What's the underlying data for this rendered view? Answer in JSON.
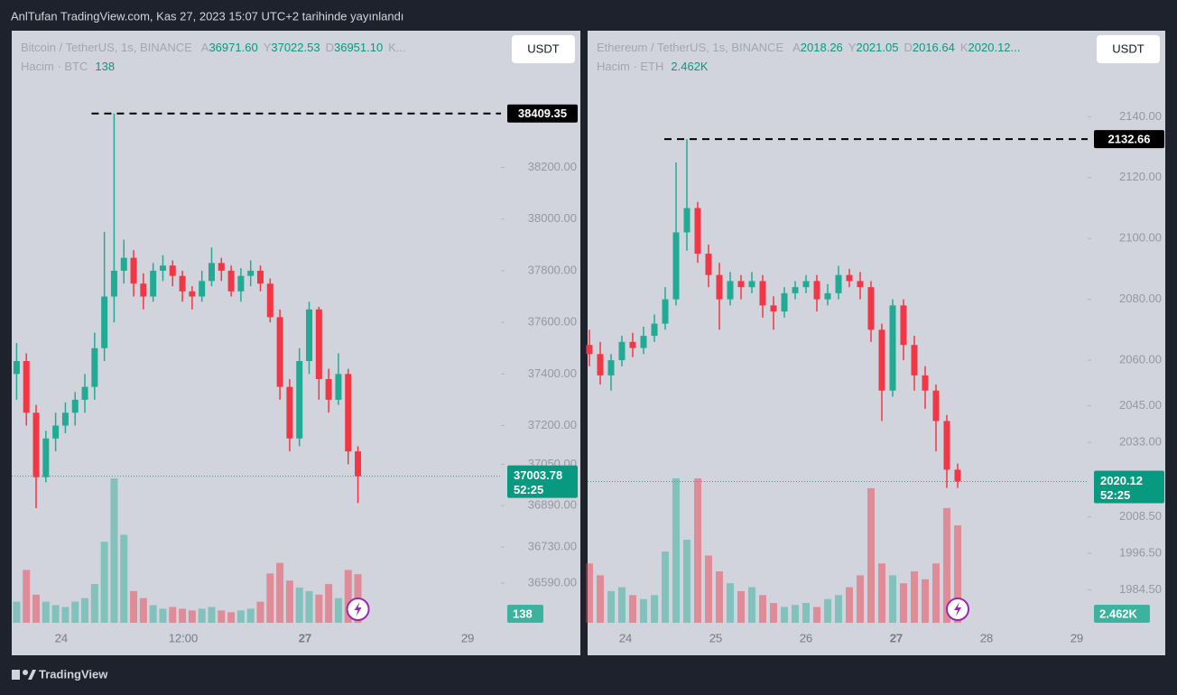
{
  "header": {
    "title": "AnlTufan TradingView.com, Kas 27, 2023 15:07 UTC+2 tarihinde yayınlandı",
    "footer": "TradingView",
    "currency_button": "USDT"
  },
  "chart_data": [
    {
      "type": "candlestick",
      "symbol": "Bitcoin / TetherUS, 1s, BINANCE",
      "ohlc": [
        {
          "key": "A",
          "value": {
            "value": 36971.6,
            "label": "36971.60"
          }
        },
        {
          "key": "Y",
          "value": {
            "value": 37022.53,
            "label": "37022.53"
          }
        },
        {
          "key": "D",
          "value": {
            "value": 36951.1,
            "label": "36951.10"
          }
        }
      ],
      "ohlc_more": "K...",
      "volume_title": "Hacim · BTC",
      "volume_label": 138,
      "max_label": {
        "value": 38409.35,
        "label": "38409.35"
      },
      "last_label": {
        "value": 37003.78,
        "label": "37003.78"
      },
      "countdown": "52:25",
      "xlim": [
        23.39,
        29.41
      ],
      "xticks": [
        24,
        {
          "value": 25.5,
          "label": "12:00"
        },
        27,
        29
      ],
      "ylim": [
        36310,
        38730
      ],
      "yticks": [
        {
          "value": 36590,
          "label": "36590.00"
        },
        {
          "value": 36730,
          "label": "36730.00"
        },
        {
          "value": 36890,
          "label": "36890.00"
        },
        {
          "value": 37050,
          "label": "37050.00"
        },
        {
          "value": 37200,
          "label": "37200.00"
        },
        {
          "value": 37400,
          "label": "37400.00"
        },
        {
          "value": 37600,
          "label": "37600.00"
        },
        {
          "value": 37800,
          "label": "37800.00"
        },
        {
          "value": 38000,
          "label": "38000.00"
        },
        {
          "value": 38200,
          "label": "38200.00"
        }
      ],
      "up_color": "#22ab94",
      "down_color": "#f23645",
      "x": [
        23.45,
        23.57,
        23.69,
        23.81,
        23.93,
        24.05,
        24.17,
        24.29,
        24.41,
        24.53,
        24.65,
        24.77,
        24.89,
        25.01,
        25.13,
        25.25,
        25.37,
        25.49,
        25.61,
        25.73,
        25.85,
        25.97,
        26.09,
        26.21,
        26.33,
        26.45,
        26.57,
        26.69,
        26.81,
        26.93,
        27.05,
        27.17,
        27.29,
        27.41,
        27.53,
        27.65
      ],
      "open": [
        37400,
        37450,
        37250,
        37000,
        37150,
        37200,
        37250,
        37300,
        37350,
        37500,
        37700,
        37800,
        37850,
        37750,
        37700,
        37800,
        37820,
        37780,
        37720,
        37700,
        37760,
        37830,
        37800,
        37720,
        37780,
        37800,
        37750,
        37620,
        37350,
        37150,
        37450,
        37650,
        37380,
        37300,
        37400,
        37100
      ],
      "high": [
        37520,
        37480,
        37280,
        37180,
        37250,
        37290,
        37330,
        37400,
        37560,
        37950,
        38409.35,
        37920,
        37880,
        37790,
        37830,
        37860,
        37840,
        37800,
        37740,
        37800,
        37890,
        37850,
        37820,
        37810,
        37840,
        37820,
        37770,
        37650,
        37380,
        37500,
        37680,
        37660,
        37420,
        37480,
        37420,
        37120
      ],
      "low": [
        37300,
        37200,
        36880,
        36980,
        37100,
        37170,
        37200,
        37250,
        37300,
        37450,
        37600,
        37750,
        37700,
        37650,
        37680,
        37760,
        37740,
        37680,
        37650,
        37680,
        37740,
        37760,
        37700,
        37680,
        37740,
        37720,
        37600,
        37300,
        37100,
        37120,
        37400,
        37300,
        37250,
        37280,
        37050,
        36900
      ],
      "close": [
        37450,
        37250,
        37000,
        37150,
        37200,
        37250,
        37300,
        37350,
        37500,
        37700,
        37800,
        37850,
        37750,
        37700,
        37800,
        37820,
        37780,
        37720,
        37700,
        37760,
        37830,
        37800,
        37720,
        37780,
        37800,
        37750,
        37620,
        37350,
        37150,
        37450,
        37650,
        37380,
        37300,
        37400,
        37100,
        37003.78
      ],
      "volume": [
        60,
        150,
        80,
        60,
        50,
        45,
        60,
        70,
        110,
        230,
        410,
        250,
        90,
        70,
        50,
        40,
        45,
        40,
        35,
        40,
        45,
        35,
        30,
        35,
        40,
        60,
        140,
        170,
        120,
        100,
        90,
        80,
        110,
        70,
        150,
        138
      ]
    },
    {
      "type": "candlestick",
      "symbol": "Ethereum / TetherUS, 1s, BINANCE",
      "ohlc": [
        {
          "key": "A",
          "value": {
            "value": 2018.26,
            "label": "2018.26"
          }
        },
        {
          "key": "Y",
          "value": {
            "value": 2021.05,
            "label": "2021.05"
          }
        },
        {
          "key": "D",
          "value": {
            "value": 2016.64,
            "label": "2016.64"
          }
        },
        {
          "key": "K",
          "value": {
            "value": 2020.12,
            "label": "2020.12..."
          }
        }
      ],
      "volume_title": "Hacim · ETH",
      "volume_label": {
        "value": 2462,
        "label": "2.462K"
      },
      "max_label": {
        "value": 2132.66,
        "label": "2132.66"
      },
      "last_label": {
        "value": 2020.12,
        "label": "2020.12"
      },
      "countdown": "52:25",
      "xlim": [
        23.58,
        29.12
      ],
      "xticks": [
        24,
        25,
        26,
        27,
        28,
        29
      ],
      "ylim": [
        1963,
        2168.3
      ],
      "yticks": [
        {
          "value": 1984.5,
          "label": "1984.50"
        },
        {
          "value": 1996.5,
          "label": "1996.50"
        },
        {
          "value": 2008.5,
          "label": "2008.50"
        },
        {
          "value": 2033,
          "label": "2033.00"
        },
        {
          "value": 2045,
          "label": "2045.00"
        },
        {
          "value": 2060,
          "label": "2060.00"
        },
        {
          "value": 2080,
          "label": "2080.00"
        },
        {
          "value": 2100,
          "label": "2100.00"
        },
        {
          "value": 2120,
          "label": "2120.00"
        },
        {
          "value": 2140,
          "label": "2140.00"
        }
      ],
      "up_color": "#22ab94",
      "down_color": "#f23645",
      "x": [
        23.6,
        23.72,
        23.84,
        23.96,
        24.08,
        24.2,
        24.32,
        24.44,
        24.56,
        24.68,
        24.8,
        24.92,
        25.04,
        25.16,
        25.28,
        25.4,
        25.52,
        25.64,
        25.76,
        25.88,
        26,
        26.12,
        26.24,
        26.36,
        26.48,
        26.6,
        26.72,
        26.84,
        26.96,
        27.08,
        27.2,
        27.32,
        27.44,
        27.56,
        27.68
      ],
      "open": [
        2065,
        2062,
        2055,
        2060,
        2066,
        2064,
        2068,
        2072,
        2080,
        2102,
        2110,
        2095,
        2088,
        2080,
        2086,
        2084,
        2086,
        2078,
        2076,
        2082,
        2084,
        2086,
        2080,
        2082,
        2088,
        2086,
        2084,
        2070,
        2050,
        2078,
        2065,
        2055,
        2050,
        2040,
        2024
      ],
      "high": [
        2070,
        2066,
        2062,
        2068,
        2069,
        2071,
        2075,
        2084,
        2125,
        2132.66,
        2112,
        2098,
        2092,
        2089,
        2088,
        2089,
        2088,
        2081,
        2084,
        2086,
        2088,
        2088,
        2085,
        2091,
        2090,
        2089,
        2086,
        2072,
        2080,
        2080,
        2068,
        2058,
        2052,
        2042,
        2026
      ],
      "low": [
        2058,
        2052,
        2050,
        2058,
        2061,
        2062,
        2066,
        2070,
        2078,
        2096,
        2092,
        2084,
        2070,
        2078,
        2080,
        2082,
        2074,
        2070,
        2074,
        2080,
        2082,
        2076,
        2078,
        2080,
        2084,
        2080,
        2066,
        2040,
        2048,
        2060,
        2050,
        2044,
        2030,
        2018,
        2018
      ],
      "close": [
        2062,
        2055,
        2060,
        2066,
        2064,
        2068,
        2072,
        2080,
        2102,
        2110,
        2095,
        2088,
        2080,
        2086,
        2084,
        2086,
        2078,
        2076,
        2082,
        2084,
        2086,
        2080,
        2082,
        2088,
        2086,
        2084,
        2070,
        2050,
        2078,
        2065,
        2055,
        2050,
        2040,
        2024,
        2020.12
      ],
      "volume": [
        1500,
        1200,
        800,
        900,
        700,
        600,
        700,
        1800,
        3650,
        2100,
        3650,
        1700,
        1300,
        1000,
        800,
        900,
        700,
        500,
        400,
        450,
        500,
        400,
        600,
        700,
        900,
        1200,
        3400,
        1500,
        1200,
        1000,
        1300,
        1100,
        1500,
        2900,
        2462
      ]
    }
  ]
}
